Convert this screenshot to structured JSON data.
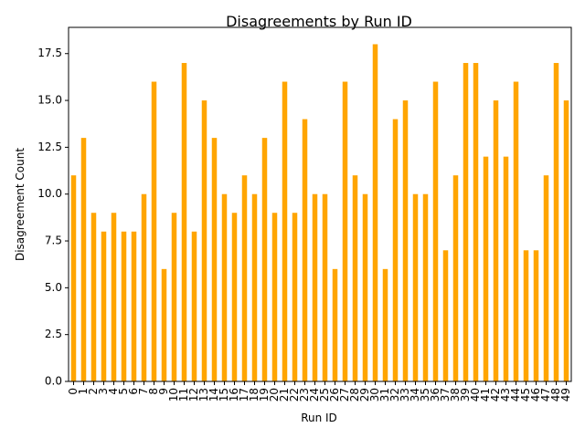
{
  "chart_data": {
    "type": "bar",
    "title": "Disagreements by Run ID",
    "xlabel": "Run ID",
    "ylabel": "Disagreement Count",
    "categories": [
      "0",
      "1",
      "2",
      "3",
      "4",
      "5",
      "6",
      "7",
      "8",
      "9",
      "10",
      "11",
      "12",
      "13",
      "14",
      "15",
      "16",
      "17",
      "18",
      "19",
      "20",
      "21",
      "22",
      "23",
      "24",
      "25",
      "26",
      "27",
      "28",
      "29",
      "30",
      "31",
      "32",
      "33",
      "34",
      "35",
      "36",
      "37",
      "38",
      "39",
      "40",
      "41",
      "42",
      "43",
      "44",
      "45",
      "46",
      "47",
      "48",
      "49"
    ],
    "values": [
      11,
      13,
      9,
      8,
      9,
      8,
      8,
      10,
      16,
      6,
      9,
      17,
      8,
      15,
      13,
      10,
      9,
      11,
      10,
      13,
      9,
      16,
      9,
      14,
      10,
      10,
      6,
      16,
      11,
      10,
      18,
      6,
      14,
      15,
      10,
      10,
      16,
      7,
      11,
      17,
      17,
      12,
      15,
      12,
      16,
      7,
      7,
      11,
      17,
      15
    ],
    "ylim": [
      0,
      18.9
    ],
    "yticks": [
      0.0,
      2.5,
      5.0,
      7.5,
      10.0,
      12.5,
      15.0,
      17.5
    ],
    "ytick_labels": [
      "0.0",
      "2.5",
      "5.0",
      "7.5",
      "10.0",
      "12.5",
      "15.0",
      "17.5"
    ],
    "bar_color": "#ffa500",
    "grid": false,
    "legend": "none"
  }
}
